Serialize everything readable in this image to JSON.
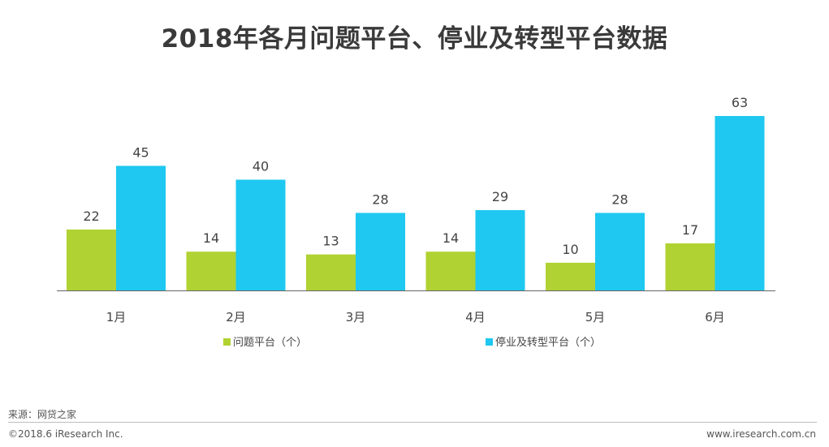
{
  "chart_data": {
    "type": "bar",
    "title": "2018年各月问题平台、停业及转型平台数据",
    "categories": [
      "1月",
      "2月",
      "3月",
      "4月",
      "5月",
      "6月"
    ],
    "series": [
      {
        "name": "问题平台（个）",
        "values": [
          22,
          14,
          13,
          14,
          10,
          17
        ],
        "color": "#b0d232"
      },
      {
        "name": "停业及转型平台（个）",
        "values": [
          45,
          40,
          28,
          29,
          28,
          63
        ],
        "color": "#1ec8f0"
      }
    ],
    "ylim": [
      0,
      63
    ],
    "grid": false,
    "legend_position": "bottom"
  },
  "footer": {
    "source": "来源：网贷之家",
    "copyright": "©2018.6 iResearch  Inc.",
    "website": "www.iresearch.com.cn"
  },
  "colors": {
    "axis": "#666666",
    "label": "#444444"
  }
}
